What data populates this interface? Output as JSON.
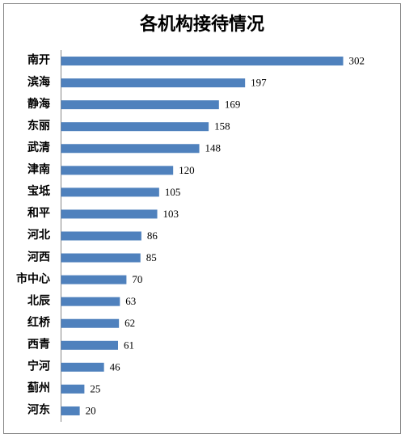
{
  "chart_data": {
    "type": "bar",
    "orientation": "horizontal",
    "title": "各机构接待情况",
    "categories": [
      "南开",
      "滨海",
      "静海",
      "东丽",
      "武清",
      "津南",
      "宝坻",
      "和平",
      "河北",
      "河西",
      "市中心",
      "北辰",
      "红桥",
      "西青",
      "宁河",
      "蓟州",
      "河东"
    ],
    "values": [
      302,
      197,
      169,
      158,
      148,
      120,
      105,
      103,
      86,
      85,
      70,
      63,
      62,
      61,
      46,
      25,
      20
    ],
    "color": "#4f81bd",
    "xlim": [
      0,
      350
    ],
    "data_labels": true
  }
}
